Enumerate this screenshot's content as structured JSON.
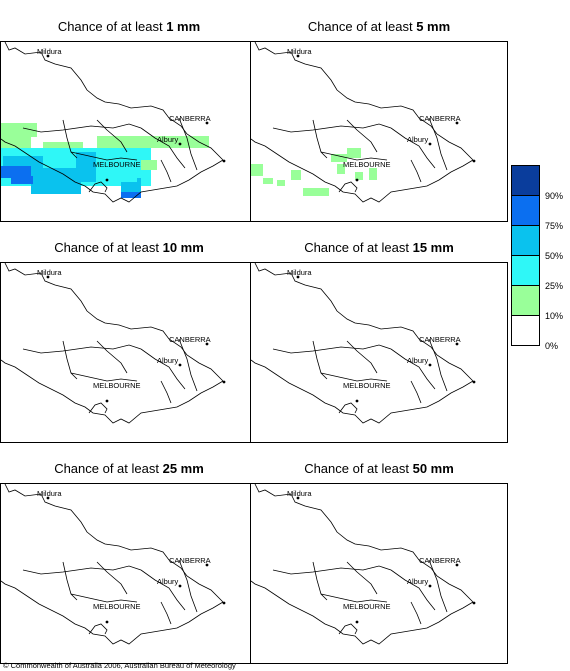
{
  "panels": [
    {
      "prefix": "Chance of at least ",
      "amount": "1 mm"
    },
    {
      "prefix": "Chance of at least ",
      "amount": "5 mm"
    },
    {
      "prefix": "Chance of at least ",
      "amount": "10 mm"
    },
    {
      "prefix": "Chance of at least ",
      "amount": "15 mm"
    },
    {
      "prefix": "Chance of at least ",
      "amount": "25 mm"
    },
    {
      "prefix": "Chance of at least ",
      "amount": "50 mm"
    }
  ],
  "places": {
    "mildura": "Mildura",
    "canberra": "CANBERRA",
    "albury": "Albury",
    "melbourne": "MELBOURNE"
  },
  "legend": {
    "labels": [
      "90%",
      "75%",
      "50%",
      "25%",
      "10%",
      "0%"
    ],
    "colors": [
      "#0a3d9c",
      "#0b6ff0",
      "#0ac2ee",
      "#2ff7f7",
      "#99ff99",
      "#ffffff"
    ]
  },
  "copyright": "© Commonwealth of Australia 2006, Australian Bureau of Meteorology"
}
